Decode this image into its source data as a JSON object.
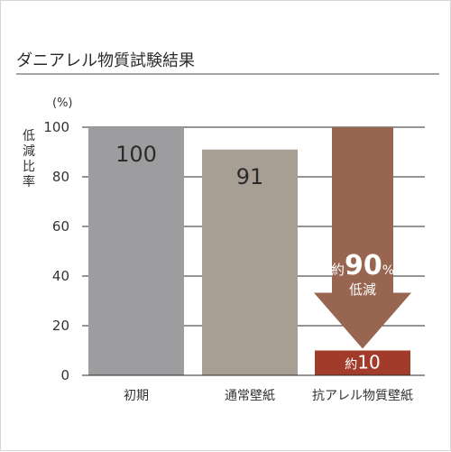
{
  "chart_data": {
    "type": "bar",
    "title": "ダニアレル物質試験結果",
    "ylabel": "低減比率",
    "unit": "(%)",
    "ylim": [
      0,
      100
    ],
    "yticks": [
      0,
      20,
      40,
      60,
      80,
      100
    ],
    "grid": true,
    "categories": [
      "初期",
      "通常壁紙",
      "抗アレル物質壁紙"
    ],
    "values": [
      100,
      91,
      10
    ],
    "value_labels": [
      "100",
      "91",
      "約10"
    ],
    "arrow_annotation": {
      "category": "抗アレル物質壁紙",
      "from": 100,
      "to": 10,
      "prefix": "約",
      "number": "90",
      "suffix": "%",
      "line2": "低減"
    },
    "colors": {
      "bars": [
        "#9d9d9f",
        "#a79e94",
        "#a23b2a"
      ],
      "arrow": "#976550",
      "arrow_text": "#ffffff",
      "final_label_text": "#ffffff",
      "grid": "#2a2a2a"
    }
  }
}
